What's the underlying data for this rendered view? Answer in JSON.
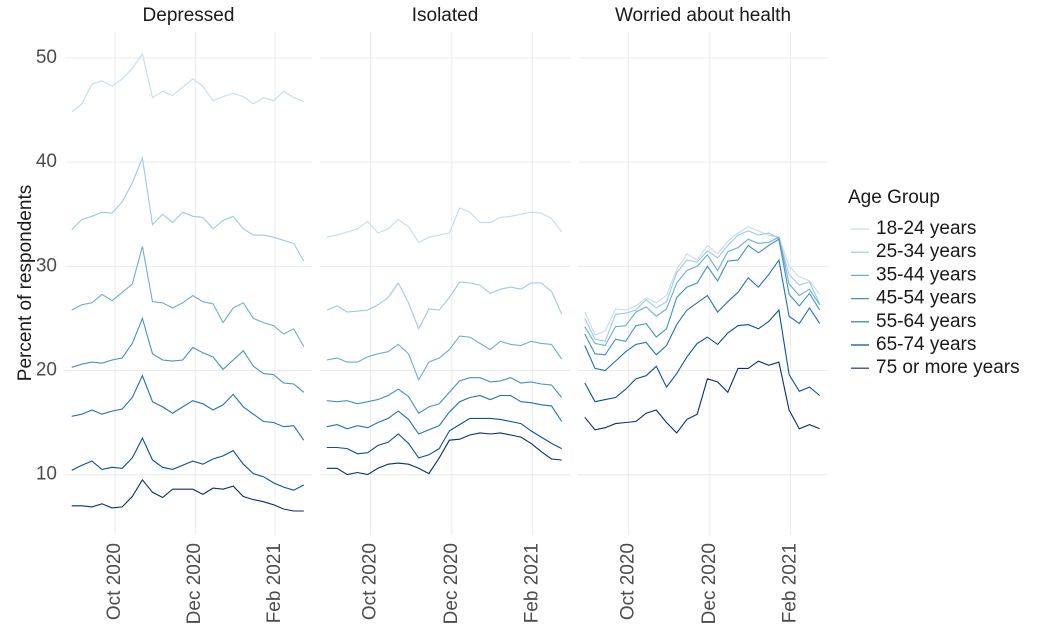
{
  "chart_data": [
    {
      "type": "line",
      "title": "Depressed",
      "ylabel": "Percent of respondents",
      "legend_title": "Age Group",
      "legend": "right",
      "grid": true,
      "x": [
        2020.66,
        2020.681,
        2020.702,
        2020.723,
        2020.744,
        2020.765,
        2020.786,
        2020.807,
        2020.828,
        2020.849,
        2020.87,
        2020.891,
        2020.912,
        2020.933,
        2020.954,
        2020.975,
        2020.996,
        2021.017,
        2021.038,
        2021.059,
        2021.08,
        2021.101,
        2021.122,
        2021.143
      ],
      "xlim": [
        2020.646,
        2021.16
      ],
      "xticks": [
        {
          "value": 2020.75,
          "label": "Oct 2020"
        },
        {
          "value": 2020.917,
          "label": "Dec 2020"
        },
        {
          "value": 2021.083,
          "label": "Feb 2021"
        }
      ],
      "ylim": [
        4.2,
        52.5
      ],
      "yticks": [
        10,
        20,
        30,
        40,
        50
      ],
      "series": [
        {
          "name": "18-24 years",
          "color": "#c6dbef",
          "values": [
            44.8,
            45.6,
            47.5,
            47.8,
            47.3,
            48,
            49,
            50.4,
            46.2,
            46.8,
            46.4,
            47.2,
            48,
            47.3,
            45.9,
            46.3,
            46.6,
            46.3,
            45.6,
            46.2,
            45.9,
            46.8,
            46.2,
            45.8
          ]
        },
        {
          "name": "25-34 years",
          "color": "#9ecae1",
          "values": [
            33.5,
            34.5,
            34.8,
            35.2,
            35.1,
            36.2,
            38,
            40.4,
            34,
            35,
            34.2,
            35.2,
            34.8,
            34.7,
            33.6,
            34.4,
            34.8,
            33.6,
            33,
            33,
            32.8,
            32.5,
            32.2,
            30.5
          ]
        },
        {
          "name": "35-44 years",
          "color": "#6baed6",
          "values": [
            25.8,
            26.3,
            26.5,
            27.3,
            26.7,
            27.5,
            28.3,
            31.9,
            26.6,
            26.5,
            26,
            26.5,
            27.2,
            26.6,
            26.4,
            24.6,
            26,
            26.5,
            25,
            24.6,
            24.3,
            23.5,
            24,
            22.3
          ]
        },
        {
          "name": "45-54 years",
          "color": "#4292c6",
          "values": [
            20.3,
            20.6,
            20.8,
            20.7,
            21,
            21.2,
            22.6,
            25,
            21.6,
            21,
            20.9,
            21,
            22.2,
            21.7,
            21.3,
            20.1,
            21,
            21.9,
            20.4,
            19.7,
            19.6,
            18.8,
            18.7,
            17.9
          ]
        },
        {
          "name": "55-64 years",
          "color": "#2171b5",
          "values": [
            15.6,
            15.8,
            16.2,
            15.8,
            16.1,
            16.3,
            17.4,
            19.5,
            17,
            16.5,
            15.9,
            16.5,
            17.1,
            16.8,
            16.2,
            16.7,
            17.7,
            16.5,
            15.8,
            15.1,
            15,
            14.6,
            14.7,
            13.3
          ]
        },
        {
          "name": "65-74 years",
          "color": "#08519c",
          "values": [
            10.4,
            10.9,
            11.3,
            10.5,
            10.7,
            10.6,
            11.6,
            13.5,
            11.4,
            10.7,
            10.5,
            10.9,
            11.3,
            11,
            11.5,
            11.8,
            12.3,
            11,
            10.1,
            9.8,
            9.2,
            8.8,
            8.5,
            9
          ]
        },
        {
          "name": "75 or more years",
          "color": "#08306b",
          "values": [
            7,
            7,
            6.9,
            7.2,
            6.8,
            6.9,
            7.9,
            9.5,
            8.3,
            7.8,
            8.6,
            8.6,
            8.6,
            8.1,
            8.7,
            8.6,
            8.9,
            7.9,
            7.6,
            7.4,
            7.1,
            6.7,
            6.5,
            6.5
          ]
        }
      ]
    },
    {
      "type": "line",
      "title": "Isolated",
      "grid": true,
      "x": [
        2020.66,
        2020.681,
        2020.702,
        2020.723,
        2020.744,
        2020.765,
        2020.786,
        2020.807,
        2020.828,
        2020.849,
        2020.87,
        2020.891,
        2020.912,
        2020.933,
        2020.954,
        2020.975,
        2020.996,
        2021.017,
        2021.038,
        2021.059,
        2021.08,
        2021.101,
        2021.122,
        2021.143
      ],
      "xlim": [
        2020.646,
        2021.16
      ],
      "xticks": [
        {
          "value": 2020.75,
          "label": "Oct 2020"
        },
        {
          "value": 2020.917,
          "label": "Dec 2020"
        },
        {
          "value": 2021.083,
          "label": "Feb 2021"
        }
      ],
      "ylim": [
        4.2,
        52.5
      ],
      "yticks": [
        10,
        20,
        30,
        40,
        50
      ],
      "series": [
        {
          "name": "18-24 years",
          "color": "#c6dbef",
          "values": [
            32.8,
            33,
            33.3,
            33.6,
            34.3,
            33.2,
            33.6,
            34.5,
            33.8,
            32.3,
            32.8,
            33,
            33.2,
            35.6,
            35.2,
            34.2,
            34.2,
            34.7,
            34.8,
            35,
            35.2,
            35.1,
            34.6,
            33.3
          ]
        },
        {
          "name": "25-34 years",
          "color": "#9ecae1",
          "values": [
            25.8,
            26.2,
            25.6,
            25.7,
            25.8,
            26.3,
            27,
            28.4,
            26.5,
            24,
            25.9,
            25.8,
            27,
            28.5,
            28.4,
            28.2,
            27.4,
            27.8,
            28,
            27.8,
            28.4,
            28.4,
            27.6,
            25.4
          ]
        },
        {
          "name": "35-44 years",
          "color": "#6baed6",
          "values": [
            21,
            21.2,
            20.8,
            20.8,
            21.3,
            21.6,
            21.8,
            22.5,
            21.6,
            19.1,
            20.8,
            21.2,
            22,
            23.3,
            23.2,
            22.6,
            22,
            22.8,
            22.5,
            22.4,
            22.8,
            22.6,
            22.5,
            21.1
          ]
        },
        {
          "name": "45-54 years",
          "color": "#4292c6",
          "values": [
            17.1,
            17,
            17.1,
            16.8,
            17,
            17.2,
            17.6,
            18.2,
            17.5,
            15.9,
            16.5,
            16.8,
            17.9,
            19,
            19.3,
            19.3,
            18.9,
            19,
            19.3,
            18.8,
            18.9,
            18.7,
            18.6,
            17.4
          ]
        },
        {
          "name": "55-64 years",
          "color": "#2171b5",
          "values": [
            14.6,
            14.8,
            14.4,
            14.7,
            14.5,
            15,
            15.4,
            16.1,
            15.3,
            13.9,
            14.3,
            14.7,
            16,
            17,
            17.4,
            17.6,
            17.2,
            17.6,
            17.6,
            17,
            16.9,
            16.7,
            16.6,
            15.1
          ]
        },
        {
          "name": "65-74 years",
          "color": "#08519c",
          "values": [
            12.6,
            12.6,
            12.5,
            12,
            12.1,
            12.8,
            13.1,
            13.9,
            13,
            11.6,
            11.9,
            12.5,
            14.2,
            14.8,
            15.4,
            15.4,
            15.4,
            15.3,
            15.1,
            14.9,
            14.2,
            13.6,
            13,
            12.5
          ]
        },
        {
          "name": "75 or more years",
          "color": "#08306b",
          "values": [
            10.6,
            10.6,
            10,
            10.2,
            10,
            10.6,
            11,
            11.1,
            11,
            10.6,
            10.1,
            11.6,
            13.3,
            13.4,
            13.8,
            14,
            13.9,
            14,
            13.8,
            13.6,
            13,
            12.2,
            11.5,
            11.4
          ]
        }
      ]
    },
    {
      "type": "line",
      "title": "Worried about health",
      "grid": true,
      "x": [
        2020.66,
        2020.681,
        2020.702,
        2020.723,
        2020.744,
        2020.765,
        2020.786,
        2020.807,
        2020.828,
        2020.849,
        2020.87,
        2020.891,
        2020.912,
        2020.933,
        2020.954,
        2020.975,
        2020.996,
        2021.017,
        2021.038,
        2021.059,
        2021.08,
        2021.101,
        2021.122,
        2021.143
      ],
      "xlim": [
        2020.646,
        2021.16
      ],
      "xticks": [
        {
          "value": 2020.75,
          "label": "Oct 2020"
        },
        {
          "value": 2020.917,
          "label": "Dec 2020"
        },
        {
          "value": 2021.083,
          "label": "Feb 2021"
        }
      ],
      "ylim": [
        4.2,
        52.5
      ],
      "yticks": [
        10,
        20,
        30,
        40,
        50
      ],
      "series": [
        {
          "name": "18-24 years",
          "color": "#c6dbef",
          "values": [
            25.6,
            23.4,
            23.8,
            25.9,
            25.8,
            26.2,
            27,
            26.5,
            27.2,
            29.7,
            31.2,
            30.6,
            32,
            31.2,
            32.4,
            33.2,
            33.8,
            33.4,
            33,
            32.8,
            30,
            29,
            28.6,
            27.3
          ]
        },
        {
          "name": "25-34 years",
          "color": "#9ecae1",
          "values": [
            25,
            23,
            22.8,
            25.4,
            25.5,
            25.8,
            26.8,
            26,
            26.6,
            29.4,
            30.6,
            30.4,
            31.5,
            30.8,
            32,
            33,
            33.4,
            33,
            33.2,
            32.7,
            29.2,
            28.2,
            28.5,
            26.4
          ]
        },
        {
          "name": "35-44 years",
          "color": "#6baed6",
          "values": [
            24.2,
            22.6,
            22.4,
            24.2,
            24.3,
            25.6,
            26.1,
            25.2,
            25.9,
            28.4,
            29.6,
            30,
            31.1,
            29.6,
            31.4,
            31.8,
            32.6,
            32.2,
            32.3,
            32.8,
            28.3,
            27.2,
            27.8,
            26.3
          ]
        },
        {
          "name": "45-54 years",
          "color": "#4292c6",
          "values": [
            23.5,
            21.6,
            21.5,
            23,
            22.8,
            24.3,
            24.5,
            23.2,
            24,
            27,
            28,
            28.4,
            30,
            28.6,
            30.5,
            30.6,
            32,
            31.3,
            32,
            32.6,
            27.3,
            26.2,
            27.4,
            25.8
          ]
        },
        {
          "name": "55-64 years",
          "color": "#2171b5",
          "values": [
            22.4,
            20.2,
            20,
            20.9,
            21.8,
            22.5,
            22.7,
            21.5,
            22.4,
            24.4,
            25.8,
            26.5,
            27.2,
            25.6,
            26.6,
            27.5,
            28.9,
            28,
            29.2,
            30.6,
            25.2,
            24.5,
            26,
            24.5
          ]
        },
        {
          "name": "65-74 years",
          "color": "#08519c",
          "values": [
            18.8,
            17,
            17.2,
            17.4,
            18.2,
            19.2,
            19.5,
            20.4,
            18.4,
            19.7,
            21.3,
            22.6,
            23.2,
            22.5,
            23.6,
            24.3,
            24.4,
            24,
            24.7,
            25.8,
            19.6,
            18,
            18.4,
            17.6
          ]
        },
        {
          "name": "75 or more years",
          "color": "#08306b",
          "values": [
            15.5,
            14.3,
            14.5,
            14.9,
            15,
            15.1,
            15.9,
            16.2,
            15,
            14,
            15.3,
            15.8,
            19.2,
            18.9,
            17.9,
            20.2,
            20.2,
            20.9,
            20.5,
            20.8,
            16.2,
            14.4,
            14.8,
            14.4
          ]
        }
      ]
    }
  ]
}
